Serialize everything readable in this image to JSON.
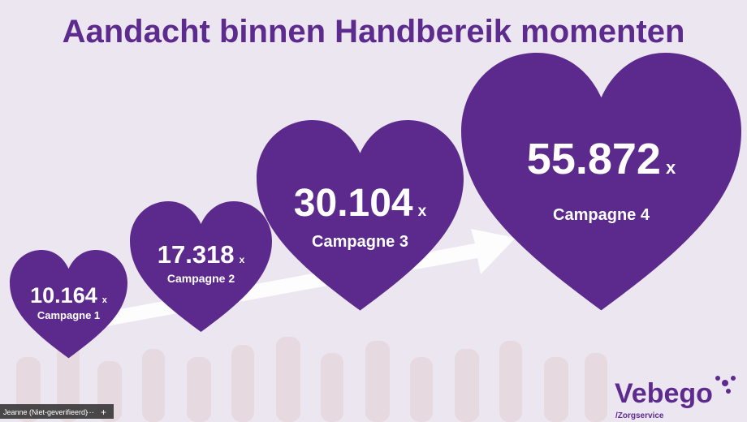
{
  "title": "Aandacht binnen Handbereik momenten",
  "campaigns": [
    {
      "value": "10.164",
      "unit": "x",
      "label": "Campagne 1"
    },
    {
      "value": "17.318",
      "unit": "x",
      "label": "Campagne 2"
    },
    {
      "value": "30.104",
      "unit": "x",
      "label": "Campagne 3"
    },
    {
      "value": "55.872",
      "unit": "x",
      "label": "Campagne 4"
    }
  ],
  "logo": {
    "name": "Vebego",
    "sub": "/Zorgservice"
  },
  "participant": "Jeanne (Niet-geverifieerd)"
}
